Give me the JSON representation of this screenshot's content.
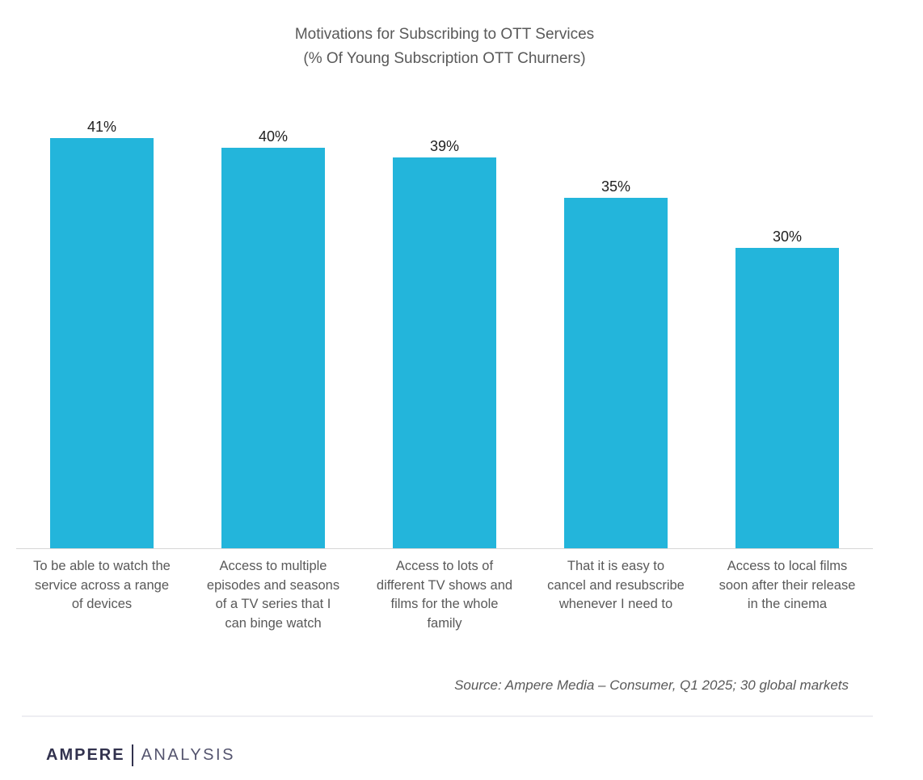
{
  "header": {
    "title_line1": "Motivations for Subscribing to OTT Services",
    "title_line2": "(% Of Young Subscription OTT Churners)"
  },
  "chart_data": {
    "type": "bar",
    "title": "Motivations for Subscribing to OTT Services (% Of Young Subscription OTT Churners)",
    "categories": [
      "To be able to watch the\nservice across a range\nof devices",
      "Access to multiple\nepisodes and seasons\nof a TV series that I\ncan binge watch",
      "Access to lots of\ndifferent TV shows and\nfilms for the whole\nfamily",
      "That it is easy to\ncancel and resubscribe\nwhenever I need to",
      "Access to local films\nsoon after their release\nin the cinema"
    ],
    "values": [
      41,
      40,
      39,
      35,
      30
    ],
    "unit": "%",
    "xlabel": "",
    "ylabel": "",
    "ylim": [
      0,
      45
    ],
    "grid": false,
    "legend": false,
    "data_labels": true,
    "bar_color": "#23b5db"
  },
  "source_note": "Source: Ampere Media – Consumer, Q1 2025; 30 global markets",
  "footer": {
    "brand_primary": "AMPERE",
    "brand_secondary": "ANALYSIS"
  },
  "colors": {
    "bar": "#23b5db",
    "title_text": "#595959",
    "value_label_text": "#212121",
    "axis_line": "#d6d6d6",
    "divider": "#eeeef2",
    "brand_navy": "#32324e",
    "brand_light": "#54546e"
  }
}
